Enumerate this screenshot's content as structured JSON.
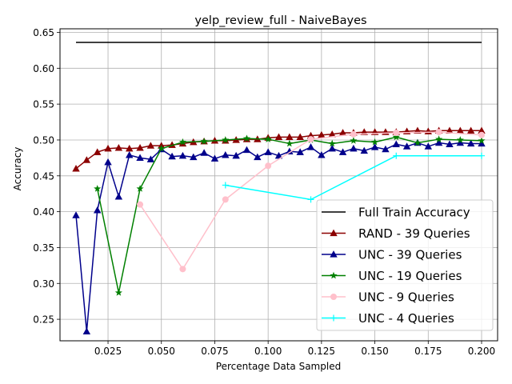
{
  "chart_data": {
    "type": "line",
    "title": "yelp_review_full - NaiveBayes",
    "xlabel": "Percentage Data Sampled",
    "ylabel": "Accuracy",
    "xlim": [
      0.0025,
      0.2075
    ],
    "ylim": [
      0.22,
      0.655
    ],
    "xticks": [
      0.025,
      0.05,
      0.075,
      0.1,
      0.125,
      0.15,
      0.175,
      0.2
    ],
    "xtick_labels": [
      "0.025",
      "0.050",
      "0.075",
      "0.100",
      "0.125",
      "0.150",
      "0.175",
      "0.200"
    ],
    "yticks": [
      0.25,
      0.3,
      0.35,
      0.4,
      0.45,
      0.5,
      0.55,
      0.6,
      0.65
    ],
    "ytick_labels": [
      "0.25",
      "0.30",
      "0.35",
      "0.40",
      "0.45",
      "0.50",
      "0.55",
      "0.60",
      "0.65"
    ],
    "grid": true,
    "legend_position": "bottom-right",
    "series": [
      {
        "name": "Full Train Accuracy",
        "color": "#000000",
        "marker": "none",
        "x": [
          0.01,
          0.2
        ],
        "y": [
          0.636,
          0.636
        ]
      },
      {
        "name": "RAND - 39 Queries",
        "color": "#8b0000",
        "marker": "triangle",
        "x": [
          0.01,
          0.015,
          0.02,
          0.025,
          0.03,
          0.035,
          0.04,
          0.045,
          0.05,
          0.055,
          0.06,
          0.065,
          0.07,
          0.075,
          0.08,
          0.085,
          0.09,
          0.095,
          0.1,
          0.105,
          0.11,
          0.115,
          0.12,
          0.125,
          0.13,
          0.135,
          0.14,
          0.145,
          0.15,
          0.155,
          0.16,
          0.165,
          0.17,
          0.175,
          0.18,
          0.185,
          0.19,
          0.195,
          0.2
        ],
        "y": [
          0.46,
          0.472,
          0.483,
          0.488,
          0.489,
          0.488,
          0.489,
          0.492,
          0.492,
          0.493,
          0.495,
          0.497,
          0.498,
          0.499,
          0.499,
          0.5,
          0.501,
          0.501,
          0.503,
          0.504,
          0.504,
          0.504,
          0.506,
          0.507,
          0.508,
          0.51,
          0.51,
          0.511,
          0.511,
          0.511,
          0.511,
          0.512,
          0.513,
          0.512,
          0.513,
          0.513,
          0.513,
          0.513,
          0.513
        ]
      },
      {
        "name": "UNC - 39 Queries",
        "color": "#00008b",
        "marker": "triangle",
        "x": [
          0.01,
          0.015,
          0.02,
          0.025,
          0.03,
          0.035,
          0.04,
          0.045,
          0.05,
          0.055,
          0.06,
          0.065,
          0.07,
          0.075,
          0.08,
          0.085,
          0.09,
          0.095,
          0.1,
          0.105,
          0.11,
          0.115,
          0.12,
          0.125,
          0.13,
          0.135,
          0.14,
          0.145,
          0.15,
          0.155,
          0.16,
          0.165,
          0.17,
          0.175,
          0.18,
          0.185,
          0.19,
          0.195,
          0.2
        ],
        "y": [
          0.395,
          0.233,
          0.402,
          0.469,
          0.421,
          0.479,
          0.475,
          0.473,
          0.487,
          0.477,
          0.478,
          0.476,
          0.482,
          0.474,
          0.479,
          0.478,
          0.486,
          0.476,
          0.483,
          0.478,
          0.484,
          0.483,
          0.49,
          0.479,
          0.488,
          0.483,
          0.488,
          0.485,
          0.49,
          0.487,
          0.494,
          0.491,
          0.496,
          0.491,
          0.496,
          0.494,
          0.496,
          0.495,
          0.495
        ]
      },
      {
        "name": "UNC - 19 Queries",
        "color": "#008000",
        "marker": "star",
        "x": [
          0.02,
          0.03,
          0.04,
          0.05,
          0.06,
          0.07,
          0.08,
          0.09,
          0.1,
          0.11,
          0.12,
          0.13,
          0.14,
          0.15,
          0.16,
          0.17,
          0.18,
          0.19,
          0.2
        ],
        "y": [
          0.432,
          0.287,
          0.432,
          0.488,
          0.497,
          0.498,
          0.5,
          0.502,
          0.501,
          0.495,
          0.5,
          0.495,
          0.499,
          0.497,
          0.504,
          0.496,
          0.501,
          0.5,
          0.499
        ]
      },
      {
        "name": "UNC - 9 Queries",
        "color": "#ffc0cb",
        "marker": "circle",
        "x": [
          0.04,
          0.06,
          0.08,
          0.1,
          0.12,
          0.14,
          0.16,
          0.18,
          0.2
        ],
        "y": [
          0.41,
          0.32,
          0.417,
          0.464,
          0.501,
          0.508,
          0.51,
          0.511,
          0.507
        ]
      },
      {
        "name": "UNC - 4 Queries",
        "color": "#00ffff",
        "marker": "plus",
        "x": [
          0.08,
          0.12,
          0.16,
          0.2
        ],
        "y": [
          0.437,
          0.417,
          0.478,
          0.478
        ]
      }
    ]
  }
}
